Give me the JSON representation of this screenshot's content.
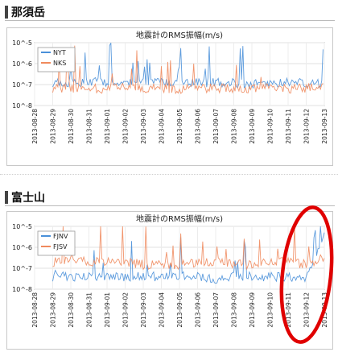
{
  "sections": [
    {
      "heading": "那須岳"
    },
    {
      "heading": "富士山"
    }
  ],
  "chart_data": [
    {
      "type": "line",
      "title": "地震計のRMS振幅(m/s)",
      "xlabel": "",
      "ylabel": "",
      "yscale": "log",
      "ylim": [
        1e-08,
        1e-05
      ],
      "y_tick_labels": [
        "10^-5",
        "10^-6",
        "10^-7",
        "10^-8"
      ],
      "x": [
        "2013-08-28",
        "2013-08-29",
        "2013-08-30",
        "2013-08-31",
        "2013-09-01",
        "2013-09-02",
        "2013-09-03",
        "2013-09-04",
        "2013-09-05",
        "2013-09-06",
        "2013-09-07",
        "2013-09-08",
        "2013-09-09",
        "2013-09-10",
        "2013-09-11",
        "2013-09-12",
        "2013-09-13"
      ],
      "grid": true,
      "legend_position": "top-left",
      "series": [
        {
          "name": "NYT",
          "color": "#4a90d9",
          "values": [
            null,
            1.3e-07,
            1.2e-07,
            1.4e-07,
            1.3e-07,
            1.2e-07,
            1.4e-07,
            1.2e-07,
            1.1e-07,
            1.2e-07,
            1.3e-07,
            1.2e-07,
            1.1e-07,
            1.2e-07,
            1.3e-07,
            1.2e-07,
            null
          ]
        },
        {
          "name": "NKS",
          "color": "#f08a5d",
          "values": [
            null,
            7e-08,
            6e-08,
            7e-08,
            6e-08,
            7e-08,
            6e-08,
            7e-08,
            6e-08,
            6e-08,
            7e-08,
            6e-08,
            6e-08,
            7e-08,
            6e-08,
            7e-08,
            null
          ]
        }
      ]
    },
    {
      "type": "line",
      "title": "地震計のRMS振幅(m/s)",
      "xlabel": "",
      "ylabel": "",
      "yscale": "log",
      "ylim": [
        1e-08,
        1e-05
      ],
      "y_tick_labels": [
        "10^-5",
        "10^-6",
        "10^-7",
        "10^-8"
      ],
      "x": [
        "2013-08-28",
        "2013-08-29",
        "2013-08-30",
        "2013-08-31",
        "2013-09-01",
        "2013-09-02",
        "2013-09-03",
        "2013-09-04",
        "2013-09-05",
        "2013-09-06",
        "2013-09-07",
        "2013-09-08",
        "2013-09-09",
        "2013-09-10",
        "2013-09-11",
        "2013-09-12",
        "2013-09-13"
      ],
      "grid": true,
      "legend_position": "top-left",
      "series": [
        {
          "name": "FJNV",
          "color": "#4a90d9",
          "values": [
            null,
            4e-08,
            4e-08,
            4e-08,
            4e-08,
            4e-08,
            4e-08,
            4e-08,
            4e-08,
            4e-08,
            3e-08,
            4e-08,
            4e-08,
            4e-08,
            4e-08,
            3e-08,
            5e-06
          ]
        },
        {
          "name": "FJSV",
          "color": "#f08a5d",
          "values": [
            null,
            2e-07,
            3e-07,
            2e-07,
            2e-07,
            2e-07,
            1.5e-07,
            1.5e-07,
            1.5e-07,
            2e-07,
            2e-07,
            1.5e-07,
            1.5e-07,
            2e-07,
            2e-07,
            1.5e-07,
            3e-07
          ]
        }
      ]
    }
  ],
  "annotation": {
    "shape": "ellipse",
    "color": "#e00000"
  }
}
